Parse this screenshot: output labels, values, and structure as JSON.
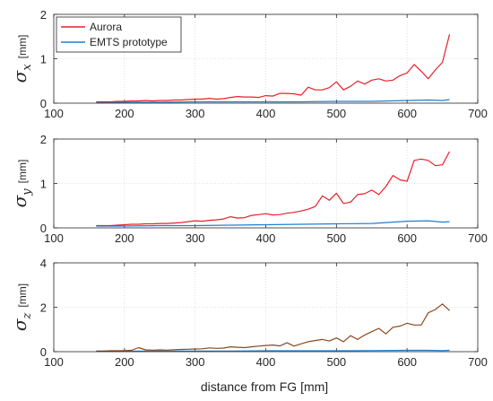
{
  "figure": {
    "xlabel": "distance from FG [mm]",
    "legend": [
      "Aurora",
      "EMTS prototype"
    ]
  },
  "chart_data": [
    {
      "type": "line",
      "ylabel_symbol": "σ",
      "ylabel_subscript": "x",
      "ylabel_unit": "[mm]",
      "xlim": [
        100,
        700
      ],
      "ylim": [
        0,
        2
      ],
      "xticks": [
        100,
        200,
        300,
        400,
        500,
        600,
        700
      ],
      "yticks": [
        0,
        1,
        2
      ],
      "grid": true,
      "legend_position": "top-left",
      "series": [
        {
          "name": "Aurora",
          "color": "#e8202a",
          "x": [
            160,
            170,
            180,
            190,
            200,
            210,
            220,
            230,
            240,
            250,
            260,
            270,
            280,
            290,
            300,
            310,
            320,
            330,
            340,
            350,
            360,
            370,
            380,
            390,
            400,
            410,
            420,
            430,
            440,
            450,
            460,
            470,
            480,
            490,
            500,
            510,
            520,
            530,
            540,
            550,
            560,
            570,
            580,
            590,
            600,
            610,
            620,
            630,
            640,
            650,
            660
          ],
          "y": [
            0.03,
            0.03,
            0.03,
            0.04,
            0.04,
            0.05,
            0.05,
            0.06,
            0.05,
            0.06,
            0.06,
            0.07,
            0.07,
            0.08,
            0.09,
            0.09,
            0.11,
            0.09,
            0.1,
            0.13,
            0.15,
            0.14,
            0.14,
            0.13,
            0.17,
            0.16,
            0.22,
            0.22,
            0.21,
            0.18,
            0.36,
            0.3,
            0.3,
            0.35,
            0.48,
            0.3,
            0.38,
            0.5,
            0.43,
            0.52,
            0.55,
            0.5,
            0.52,
            0.62,
            0.68,
            0.87,
            0.72,
            0.55,
            0.75,
            0.92,
            1.55
          ]
        },
        {
          "name": "EMTS prototype",
          "color": "#1f7fd1",
          "x": [
            160,
            200,
            250,
            300,
            350,
            400,
            450,
            500,
            550,
            600,
            630,
            650,
            660
          ],
          "y": [
            0.02,
            0.02,
            0.02,
            0.03,
            0.03,
            0.03,
            0.03,
            0.04,
            0.04,
            0.06,
            0.07,
            0.06,
            0.08
          ]
        }
      ]
    },
    {
      "type": "line",
      "ylabel_symbol": "σ",
      "ylabel_subscript": "y",
      "ylabel_unit": "[mm]",
      "xlim": [
        100,
        700
      ],
      "ylim": [
        0,
        2
      ],
      "xticks": [
        100,
        200,
        300,
        400,
        500,
        600,
        700
      ],
      "yticks": [
        0,
        1,
        2
      ],
      "grid": true,
      "series": [
        {
          "name": "Aurora",
          "color": "#e8202a",
          "x": [
            160,
            170,
            180,
            190,
            200,
            210,
            220,
            230,
            240,
            250,
            260,
            270,
            280,
            290,
            300,
            310,
            320,
            330,
            340,
            350,
            360,
            370,
            380,
            390,
            400,
            410,
            420,
            430,
            440,
            450,
            460,
            470,
            480,
            490,
            500,
            510,
            520,
            530,
            540,
            550,
            560,
            570,
            580,
            590,
            600,
            610,
            620,
            630,
            640,
            650,
            660
          ],
          "y": [
            0.05,
            0.05,
            0.05,
            0.06,
            0.07,
            0.08,
            0.08,
            0.09,
            0.09,
            0.1,
            0.1,
            0.11,
            0.12,
            0.14,
            0.16,
            0.15,
            0.17,
            0.18,
            0.2,
            0.25,
            0.22,
            0.23,
            0.28,
            0.3,
            0.32,
            0.29,
            0.3,
            0.33,
            0.35,
            0.38,
            0.42,
            0.48,
            0.72,
            0.62,
            0.78,
            0.55,
            0.58,
            0.75,
            0.77,
            0.85,
            0.75,
            0.93,
            1.18,
            1.08,
            1.05,
            1.52,
            1.55,
            1.52,
            1.4,
            1.42,
            1.72
          ]
        },
        {
          "name": "EMTS prototype",
          "color": "#1f7fd1",
          "x": [
            160,
            200,
            250,
            300,
            350,
            400,
            450,
            500,
            550,
            600,
            630,
            650,
            660
          ],
          "y": [
            0.04,
            0.04,
            0.05,
            0.05,
            0.06,
            0.07,
            0.08,
            0.09,
            0.1,
            0.15,
            0.16,
            0.13,
            0.14
          ]
        }
      ]
    },
    {
      "type": "line",
      "ylabel_symbol": "σ",
      "ylabel_subscript": "z",
      "ylabel_unit": "[mm]",
      "xlim": [
        100,
        700
      ],
      "ylim": [
        0,
        4
      ],
      "xticks": [
        100,
        200,
        300,
        400,
        500,
        600,
        700
      ],
      "yticks": [
        0,
        2,
        4
      ],
      "grid": true,
      "series": [
        {
          "name": "Aurora",
          "color": "#8a4a1e",
          "x": [
            160,
            170,
            180,
            190,
            200,
            210,
            220,
            230,
            240,
            250,
            260,
            270,
            280,
            290,
            300,
            310,
            320,
            330,
            340,
            350,
            360,
            370,
            380,
            390,
            400,
            410,
            420,
            430,
            440,
            450,
            460,
            470,
            480,
            490,
            500,
            510,
            520,
            530,
            540,
            550,
            560,
            570,
            580,
            590,
            600,
            610,
            620,
            630,
            640,
            650,
            660
          ],
          "y": [
            0.03,
            0.03,
            0.04,
            0.04,
            0.05,
            0.06,
            0.18,
            0.08,
            0.07,
            0.08,
            0.07,
            0.09,
            0.1,
            0.11,
            0.12,
            0.13,
            0.17,
            0.15,
            0.16,
            0.22,
            0.2,
            0.18,
            0.22,
            0.25,
            0.28,
            0.3,
            0.26,
            0.4,
            0.25,
            0.35,
            0.45,
            0.5,
            0.55,
            0.48,
            0.62,
            0.45,
            0.72,
            0.55,
            0.75,
            0.9,
            1.05,
            0.8,
            1.1,
            1.15,
            1.28,
            1.2,
            1.2,
            1.75,
            1.9,
            2.15,
            1.85
          ]
        },
        {
          "name": "EMTS prototype",
          "color": "#1f7fd1",
          "x": [
            160,
            200,
            250,
            300,
            350,
            400,
            450,
            500,
            550,
            600,
            630,
            650,
            660
          ],
          "y": [
            0.02,
            0.02,
            0.03,
            0.03,
            0.03,
            0.04,
            0.04,
            0.04,
            0.05,
            0.06,
            0.06,
            0.05,
            0.06
          ]
        }
      ]
    }
  ]
}
